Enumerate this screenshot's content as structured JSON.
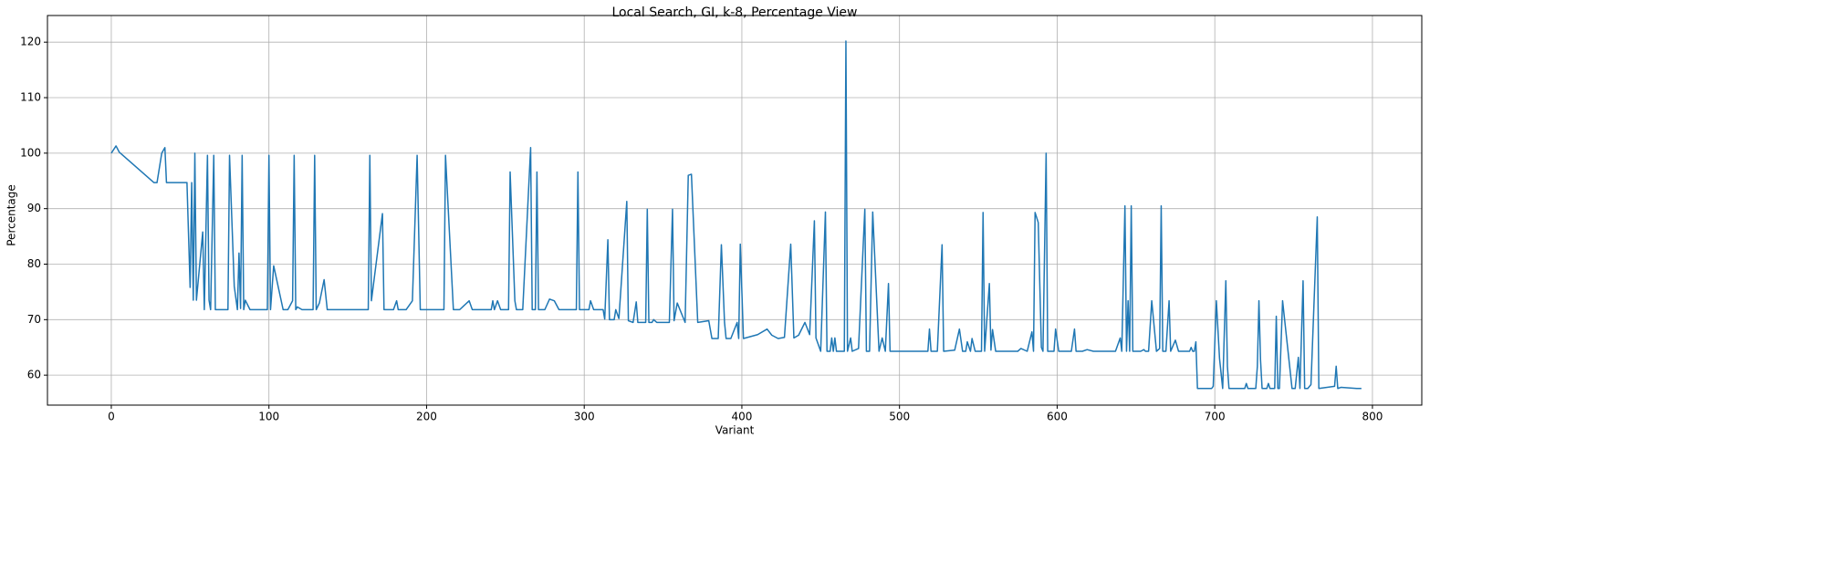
{
  "chart_data": {
    "type": "line",
    "title": "Local Search, GI, k-8, Percentage View",
    "x_label": "Variant",
    "y_label": "Percentage",
    "xlim": [
      -40.5,
      831.3
    ],
    "ylim": [
      54.6,
      124.8
    ],
    "xticks": [
      0,
      100,
      200,
      300,
      400,
      500,
      600,
      700,
      800
    ],
    "yticks": [
      60,
      70,
      80,
      90,
      100,
      110,
      120
    ],
    "grid": true,
    "x": [
      0,
      3,
      5,
      27,
      29,
      32,
      34,
      35,
      48,
      50,
      51,
      52,
      53,
      54,
      58,
      59,
      61,
      62,
      63,
      65,
      66,
      74,
      75,
      78,
      80,
      81,
      82,
      83,
      84,
      85,
      88,
      99,
      100,
      101,
      103,
      109,
      112,
      115,
      116,
      117,
      118,
      121,
      128,
      129,
      130,
      132,
      135,
      137,
      163,
      164,
      165,
      172,
      173,
      179,
      181,
      182,
      187,
      191,
      194,
      196,
      211,
      212,
      217,
      221,
      227,
      229,
      241,
      242,
      243,
      245,
      247,
      252,
      253,
      256,
      257,
      261,
      266,
      267,
      269,
      270,
      271,
      275,
      278,
      281,
      284,
      295,
      296,
      297,
      303,
      304,
      306,
      312,
      313,
      315,
      316,
      319,
      320,
      322,
      327,
      328,
      331,
      333,
      334,
      339,
      340,
      341,
      343,
      344,
      346,
      354,
      356,
      357,
      359,
      364,
      366,
      368,
      372,
      379,
      381,
      385,
      387,
      389,
      390,
      393,
      397,
      398,
      399,
      401,
      410,
      416,
      419,
      423,
      427,
      431,
      433,
      436,
      440,
      443,
      446,
      447,
      450,
      453,
      454,
      456,
      457,
      458,
      459,
      460,
      465,
      466,
      467,
      469,
      470,
      474,
      478,
      479,
      481,
      483,
      487,
      489,
      491,
      493,
      494,
      518,
      519,
      520,
      524,
      527,
      528,
      535,
      538,
      540,
      542,
      543,
      545,
      546,
      548,
      552,
      553,
      554,
      557,
      558,
      559,
      561,
      575,
      577,
      581,
      584,
      585,
      586,
      588,
      590,
      591,
      593,
      594,
      598,
      599,
      601,
      609,
      611,
      612,
      616,
      619,
      623,
      637,
      640,
      641,
      643,
      644,
      645,
      646,
      647,
      648,
      653,
      655,
      656,
      658,
      660,
      663,
      665,
      666,
      667,
      669,
      671,
      672,
      675,
      677,
      684,
      685,
      686,
      687,
      688,
      689,
      698,
      699,
      701,
      703,
      705,
      707,
      708,
      709,
      719,
      720,
      721,
      726,
      727,
      728,
      729,
      730,
      733,
      734,
      735,
      738,
      739,
      740,
      741,
      743,
      749,
      751,
      753,
      754,
      756,
      757,
      759,
      761,
      765,
      766,
      776,
      777,
      778,
      780,
      790,
      793
    ],
    "values": [
      100,
      101.3,
      100.2,
      94.7,
      94.7,
      100,
      101,
      94.7,
      94.7,
      75.8,
      94.7,
      73.5,
      100,
      73.5,
      85.8,
      71.8,
      99.6,
      73.5,
      71.8,
      99.6,
      71.8,
      71.8,
      99.6,
      76,
      71.8,
      82,
      72,
      99.6,
      71.8,
      73.5,
      71.8,
      71.8,
      99.6,
      71.8,
      79.7,
      71.8,
      71.8,
      73.4,
      99.6,
      71.8,
      72.3,
      71.8,
      71.8,
      99.6,
      71.8,
      73,
      77.2,
      71.8,
      71.8,
      99.6,
      73.4,
      89.1,
      71.8,
      71.8,
      73.4,
      71.8,
      71.8,
      73.4,
      99.6,
      71.8,
      71.8,
      99.6,
      71.8,
      71.8,
      73.4,
      71.8,
      71.8,
      73.4,
      71.8,
      73.4,
      71.8,
      71.8,
      96.6,
      73.4,
      71.8,
      71.8,
      101,
      71.8,
      71.8,
      96.6,
      71.8,
      71.8,
      73.7,
      73.4,
      71.8,
      71.8,
      96.6,
      71.8,
      71.8,
      73.4,
      71.8,
      71.8,
      70.1,
      84.4,
      70,
      70,
      71.8,
      70.2,
      91.3,
      69.8,
      69.5,
      73.2,
      69.5,
      69.5,
      89.9,
      69.5,
      69.5,
      70,
      69.5,
      69.5,
      89.9,
      69.8,
      73,
      69.5,
      96,
      96.2,
      69.5,
      69.8,
      66.6,
      66.6,
      83.5,
      69.5,
      66.6,
      66.6,
      69.5,
      66.6,
      83.6,
      66.6,
      67.3,
      68.3,
      67.2,
      66.6,
      66.8,
      83.6,
      66.7,
      67.2,
      69.5,
      67.3,
      87.8,
      66.7,
      64.3,
      89.4,
      64.3,
      64.3,
      66.7,
      64.3,
      66.7,
      64.3,
      64.3,
      120.2,
      64.3,
      66.7,
      64.3,
      64.8,
      89.9,
      64.3,
      64.3,
      89.4,
      64.3,
      66.7,
      64.3,
      76.5,
      64.3,
      64.3,
      68.3,
      64.3,
      64.3,
      83.5,
      64.3,
      64.5,
      68.3,
      64.3,
      64.3,
      66,
      64.3,
      66.6,
      64.3,
      64.3,
      89.3,
      64.3,
      76.5,
      64.5,
      68.2,
      64.3,
      64.3,
      64.8,
      64.3,
      67.8,
      64.3,
      89.3,
      87.5,
      65,
      64.3,
      100,
      64.3,
      64.3,
      68.3,
      64.3,
      64.3,
      68.3,
      64.3,
      64.3,
      64.6,
      64.3,
      64.3,
      66.7,
      64.3,
      90.5,
      64.3,
      73.4,
      64.3,
      90.5,
      64.3,
      64.3,
      64.6,
      64.3,
      64.3,
      73.4,
      64.3,
      64.8,
      90.5,
      64.3,
      64.3,
      73.4,
      64.3,
      66.3,
      64.3,
      64.3,
      65,
      64.3,
      64.3,
      66,
      57.6,
      57.6,
      58,
      73.4,
      63,
      57.6,
      77,
      61.6,
      57.6,
      57.6,
      58.5,
      57.6,
      57.6,
      61.6,
      73.4,
      62.8,
      57.6,
      57.6,
      58.5,
      57.6,
      57.6,
      70.6,
      57.6,
      57.6,
      73.4,
      57.6,
      57.6,
      63.2,
      57.6,
      77,
      57.6,
      57.6,
      58.3,
      88.5,
      57.6,
      58,
      61.6,
      57.6,
      57.8,
      57.6,
      57.6
    ],
    "color": "#1f77b4"
  }
}
